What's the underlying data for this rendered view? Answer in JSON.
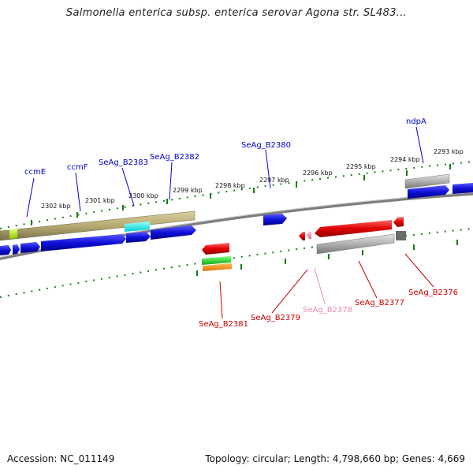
{
  "title": "Salmonella enterica subsp. enterica serovar Agona str. SL483...",
  "footer": {
    "accession": "Accession: NC_011149",
    "summary": "Topology: circular; Length: 4,798,660 bp; Genes: 4,669"
  },
  "ruler_labels": [
    "2302 kbp",
    "2301 kbp",
    "2300 kbp",
    "2299 kbp",
    "2298 kbp",
    "2297 kbp",
    "2296 kbp",
    "2295 kbp",
    "2294 kbp",
    "2293 kbp"
  ],
  "genes_top": [
    "ccmE",
    "ccmF",
    "SeAg_B2383",
    "SeAg_B2382",
    "SeAg_B2380",
    "ndpA"
  ],
  "genes_bottom": [
    "SeAg_B2381",
    "SeAg_B2379",
    "SeAg_B2378",
    "SeAg_B2377",
    "SeAg_B2376"
  ],
  "colors": {
    "forward_label": "#0000cc",
    "reverse_label": "#cc0000",
    "faded_label": "#f08ab0",
    "forward_gene": "#1f1fd6",
    "reverse_gene": "#e01010",
    "olive_feature": "#b8ad78",
    "gray_feature": "#a9a9a9",
    "backbone": "#7d7d7d",
    "tick": "#1a7a1a"
  }
}
